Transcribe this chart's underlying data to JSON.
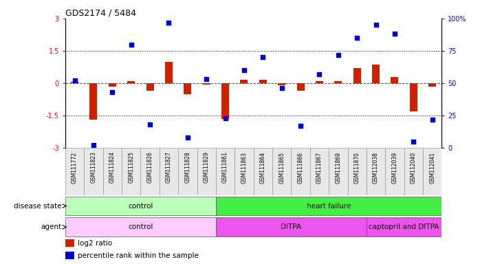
{
  "title": "GDS2174 / 5484",
  "samples": [
    "GSM111772",
    "GSM111823",
    "GSM111824",
    "GSM111825",
    "GSM111826",
    "GSM111827",
    "GSM111828",
    "GSM111829",
    "GSM111861",
    "GSM111863",
    "GSM111864",
    "GSM111865",
    "GSM111866",
    "GSM111867",
    "GSM111869",
    "GSM111870",
    "GSM112038",
    "GSM112039",
    "GSM112040",
    "GSM112041"
  ],
  "log2_ratio": [
    0.05,
    -1.7,
    -0.15,
    0.1,
    -0.35,
    1.0,
    -0.5,
    -0.05,
    -1.65,
    0.15,
    0.15,
    -0.1,
    -0.35,
    0.1,
    0.1,
    0.7,
    0.85,
    0.3,
    -1.3,
    -0.15
  ],
  "percentile": [
    52,
    2,
    43,
    80,
    18,
    97,
    8,
    53,
    23,
    60,
    70,
    46,
    17,
    57,
    72,
    85,
    95,
    88,
    5,
    22
  ],
  "ylim_left": [
    -3,
    3
  ],
  "ylim_right": [
    0,
    100
  ],
  "yticks_left": [
    -3,
    -1.5,
    0,
    1.5,
    3
  ],
  "yticks_right": [
    0,
    25,
    50,
    75,
    100
  ],
  "ytick_labels_left": [
    "-3",
    "-1.5",
    "0",
    "1.5",
    "3"
  ],
  "ytick_labels_right": [
    "0",
    "25",
    "50",
    "75",
    "100%"
  ],
  "hlines": [
    1.5,
    -1.5
  ],
  "bar_color": "#cc2200",
  "dot_color": "#0000cc",
  "disease_state_groups": [
    {
      "label": "control",
      "start": 0,
      "end": 7,
      "color": "#bbffbb"
    },
    {
      "label": "heart failure",
      "start": 8,
      "end": 19,
      "color": "#44ee44"
    }
  ],
  "agent_groups": [
    {
      "label": "control",
      "start": 0,
      "end": 7,
      "color": "#ffccff"
    },
    {
      "label": "DITPA",
      "start": 8,
      "end": 15,
      "color": "#ee55ee"
    },
    {
      "label": "captopril and DITPA",
      "start": 16,
      "end": 19,
      "color": "#ee55ee"
    }
  ]
}
